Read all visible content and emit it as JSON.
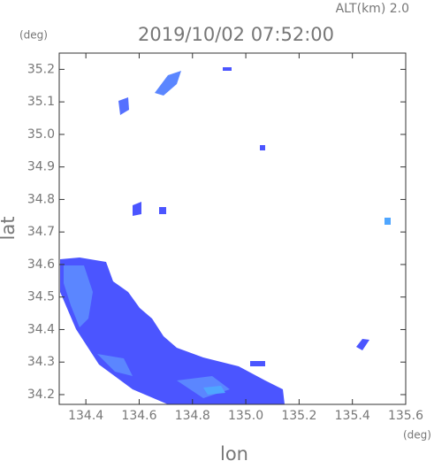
{
  "chart_data": {
    "type": "radar-map",
    "title": "2019/10/02 07:52:00",
    "subtitle": "ALT(km) 2.0",
    "x_label": "lon",
    "y_label": "lat",
    "x_unit": "(deg)",
    "y_unit": "(deg)",
    "xlim": [
      134.3,
      135.6
    ],
    "ylim": [
      34.17,
      35.25
    ],
    "xticks": [
      134.4,
      134.6,
      134.8,
      {
        "value": 135.0,
        "label": "135.0"
      },
      135.2,
      135.4,
      135.6
    ],
    "yticks": [
      34.2,
      34.3,
      34.4,
      34.5,
      34.6,
      34.7,
      34.8,
      34.9,
      {
        "value": 35.0,
        "label": "35.0"
      },
      35.1,
      35.2
    ]
  }
}
